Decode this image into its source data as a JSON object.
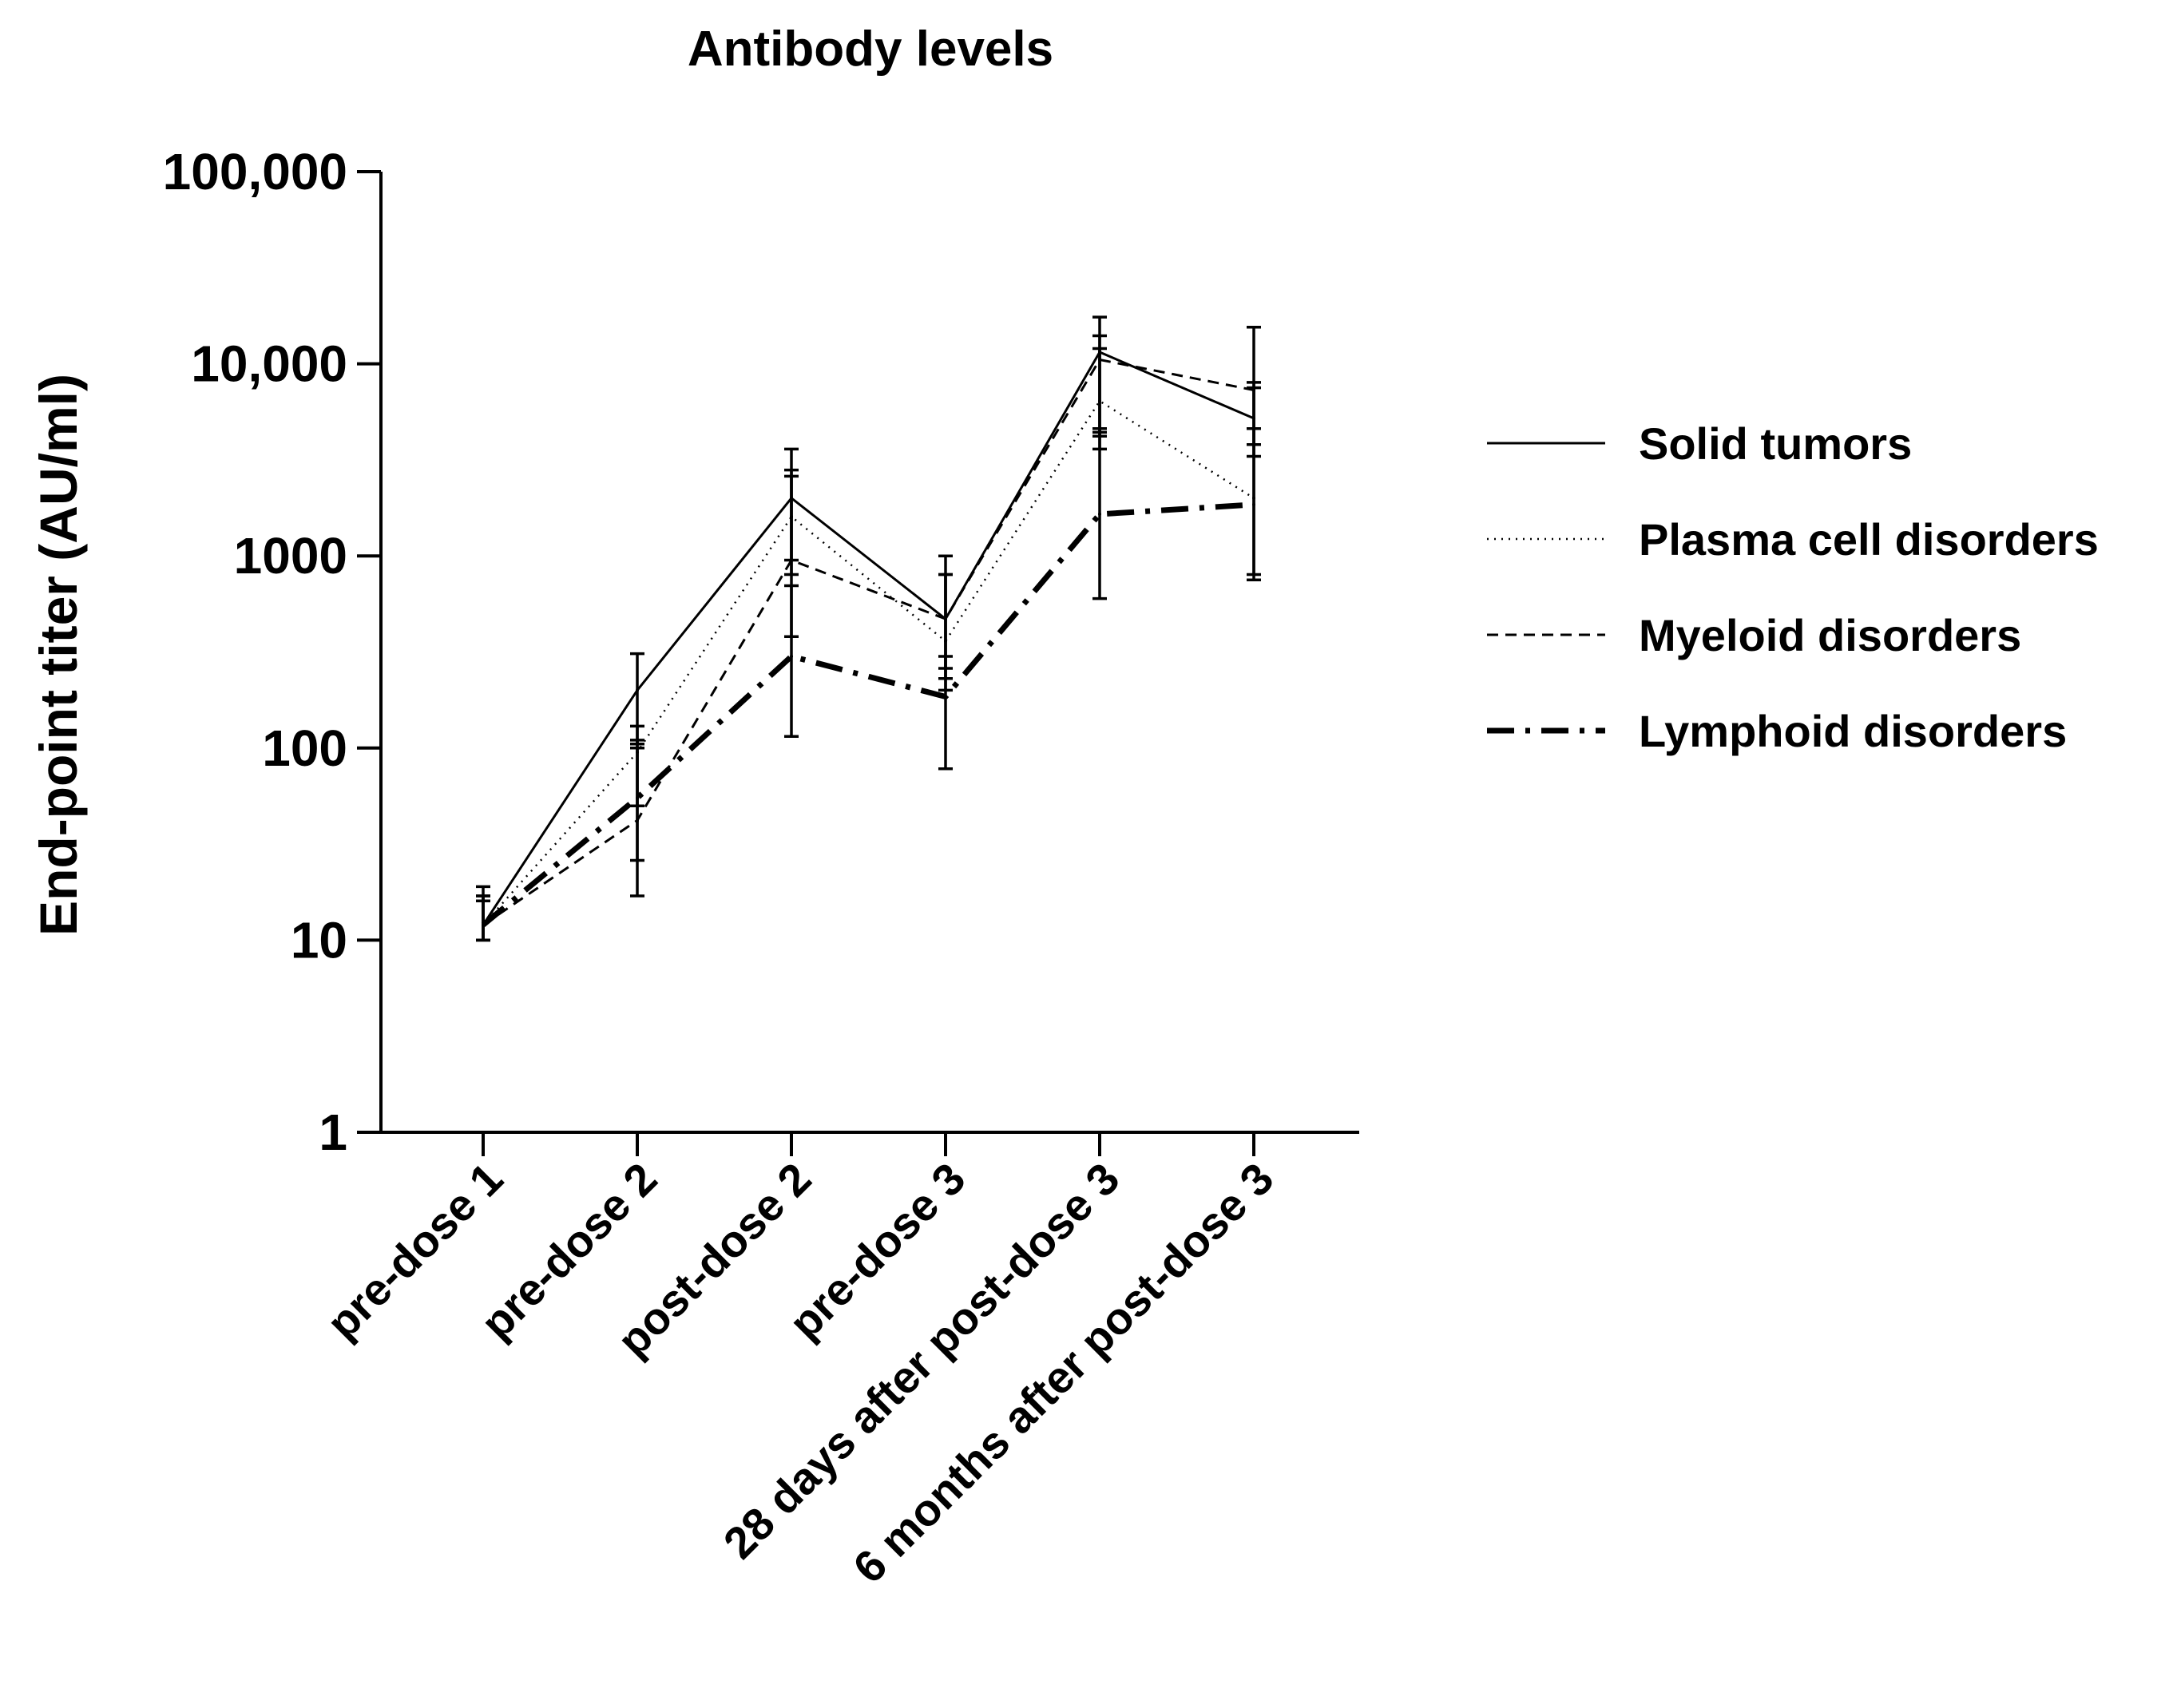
{
  "chart_data": {
    "type": "line",
    "title": "Antibody levels",
    "xlabel": "",
    "ylabel": "End-point titer (AU/ml)",
    "yscale": "log",
    "ylim": [
      1,
      100000
    ],
    "yticks": [
      1,
      10,
      100,
      1000,
      10000,
      100000
    ],
    "ytick_labels": [
      "1",
      "10",
      "100",
      "1000",
      "10,000",
      "100,000"
    ],
    "categories": [
      "pre-dose 1",
      "pre-dose 2",
      "post-dose 2",
      "pre-dose 3",
      "28 days after post-dose 3",
      "6 months after post-dose 3"
    ],
    "legend_position": "right",
    "series": [
      {
        "name": "Solid tumors",
        "style": "solid",
        "values": [
          12,
          200,
          2000,
          470,
          11500,
          5200
        ],
        "error_low": [
          10,
          105,
          950,
          230,
          4200,
          3300
        ],
        "error_high": [
          19,
          310,
          3600,
          1000,
          17500,
          15500
        ]
      },
      {
        "name": "Plasma cell disorders",
        "style": "dotted",
        "values": [
          12,
          95,
          1600,
          360,
          6400,
          2000
        ],
        "error_low": [
          10,
          50,
          800,
          200,
          3600,
          800
        ],
        "error_high": [
          17,
          130,
          2800,
          800,
          12000,
          7500
        ]
      },
      {
        "name": "Myeloid disorders",
        "style": "dashed",
        "values": [
          12,
          42,
          950,
          470,
          10500,
          7300
        ],
        "error_low": [
          10,
          17,
          380,
          260,
          4400,
          3800
        ],
        "error_high": [
          17,
          110,
          2600,
          800,
          14000,
          8000
        ]
      },
      {
        "name": "Lymphoid disorders",
        "style": "dashdot",
        "values": [
          12,
          55,
          300,
          185,
          1650,
          1850
        ],
        "error_low": [
          10,
          26,
          115,
          78,
          600,
          750
        ],
        "error_high": [
          16,
          100,
          700,
          300,
          4600,
          4600
        ]
      }
    ]
  }
}
